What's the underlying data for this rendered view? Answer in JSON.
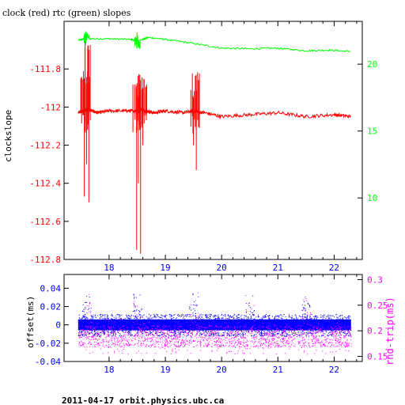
{
  "title": "clock (red) rtc (green) slopes",
  "footer": "2011-04-17  orbit.physics.ubc.ca",
  "colors": {
    "clock": "#ff0000",
    "rtc": "#00ff00",
    "offset": "#0000ff",
    "roundtrip": "#ff00ff",
    "axis": "#000000"
  },
  "chart_data": [
    {
      "type": "line",
      "title": "clock (red) rtc (green) slopes",
      "xlim": [
        17.2,
        22.5
      ],
      "x_ticks": [
        18,
        19,
        20,
        21,
        22
      ],
      "x_tick_labels": [
        "18",
        "19",
        "20",
        "21",
        "22"
      ],
      "left_axis": {
        "label": "clockslope",
        "lim": [
          -112.8,
          -111.55
        ],
        "ticks": [
          -112.8,
          -112.6,
          -112.4,
          -112.2,
          -112.0,
          -111.8
        ],
        "tick_labels": [
          "-112.8",
          "-112.6",
          "-112.4",
          "-112.2",
          "-112",
          "-111.8"
        ]
      },
      "right_axis": {
        "label": "",
        "lim": [
          5.4,
          23.2
        ],
        "ticks": [
          10,
          15,
          20
        ],
        "tick_labels": [
          "10",
          "15",
          "20"
        ]
      },
      "series": [
        {
          "axis": "left",
          "color": "#ff0000",
          "x": [
            17.45,
            17.55,
            17.62,
            17.7,
            17.8,
            18.0,
            18.3,
            18.45,
            18.55,
            18.65,
            18.8,
            19.0,
            19.3,
            19.5,
            19.7,
            20.0,
            20.5,
            21.0,
            21.5,
            22.0,
            22.3
          ],
          "y": [
            -112.03,
            -112.02,
            -112.01,
            -112.02,
            -112.03,
            -112.02,
            -112.02,
            -112.02,
            -112.01,
            -112.02,
            -112.03,
            -112.02,
            -112.03,
            -112.02,
            -112.03,
            -112.05,
            -112.04,
            -112.03,
            -112.05,
            -112.04,
            -112.05
          ],
          "spikes": [
            {
              "x": 17.56,
              "high": -111.85,
              "low": -112.47
            },
            {
              "x": 17.6,
              "high": -111.88,
              "low": -112.3
            },
            {
              "x": 17.64,
              "high": -111.7,
              "low": -112.5
            },
            {
              "x": 18.49,
              "high": -111.92,
              "low": -112.75
            },
            {
              "x": 18.52,
              "high": -111.95,
              "low": -112.4
            },
            {
              "x": 18.56,
              "high": -111.86,
              "low": -112.77
            },
            {
              "x": 18.6,
              "high": -111.9,
              "low": -112.2
            },
            {
              "x": 19.5,
              "high": -111.95,
              "low": -112.2
            },
            {
              "x": 19.55,
              "high": -111.86,
              "low": -112.33
            }
          ]
        },
        {
          "axis": "right",
          "color": "#00ff00",
          "x": [
            17.45,
            17.6,
            18.0,
            18.4,
            18.5,
            18.7,
            19.0,
            19.5,
            20.0,
            20.5,
            21.0,
            21.5,
            21.9,
            22.3
          ],
          "y": [
            21.8,
            21.9,
            21.9,
            21.85,
            21.7,
            22.0,
            21.85,
            21.55,
            21.2,
            21.15,
            21.2,
            21.0,
            21.05,
            20.95
          ]
        }
      ]
    },
    {
      "type": "scatter",
      "xlim": [
        17.2,
        22.5
      ],
      "x_ticks": [
        18,
        19,
        20,
        21,
        22
      ],
      "x_tick_labels": [
        "18",
        "19",
        "20",
        "21",
        "22"
      ],
      "left_axis": {
        "label": "offset(ms)",
        "lim": [
          -0.04,
          0.055
        ],
        "ticks": [
          -0.04,
          -0.02,
          0,
          0.02,
          0.04
        ],
        "tick_labels": [
          "-0.04",
          "-0.02",
          "0",
          "0.02",
          "0.04"
        ]
      },
      "right_axis": {
        "label": "rnd-trip(ms)",
        "lim": [
          0.14,
          0.31
        ],
        "ticks": [
          0.15,
          0.2,
          0.25,
          0.3
        ],
        "tick_labels": [
          "0.15",
          "0.2",
          "0.25",
          "0.3"
        ]
      },
      "series": [
        {
          "axis": "left",
          "color": "#0000ff",
          "x_range": [
            17.45,
            22.3
          ],
          "center": 0.0,
          "spread": 0.012,
          "bursts": [
            17.6,
            18.5,
            19.5,
            20.5,
            21.5
          ]
        },
        {
          "axis": "right",
          "color": "#ff00ff",
          "x_range": [
            17.45,
            22.3
          ],
          "center": 0.19,
          "spread": 0.035,
          "bursts": [
            17.6,
            18.5,
            19.5,
            20.5,
            21.5
          ]
        }
      ]
    }
  ]
}
